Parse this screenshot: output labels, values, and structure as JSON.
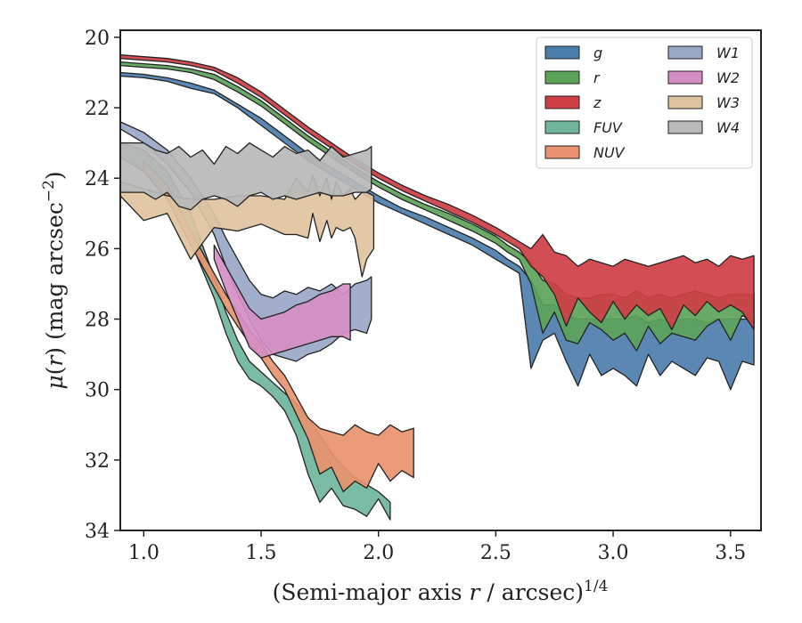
{
  "chart_data": {
    "type": "area",
    "title": "",
    "xlabel_parts": {
      "prefix": "(Semi-major axis ",
      "var": "r",
      "suffix": " / arcsec)",
      "sup": "1/4"
    },
    "ylabel_parts": {
      "mu": "μ",
      "open": "(",
      "var": "r",
      "close": ")",
      "units": " (mag arcsec",
      "sup": "−2",
      "end": ")"
    },
    "xlim": [
      0.9,
      3.63
    ],
    "ylim": [
      34,
      19.8
    ],
    "y_inverted": true,
    "xticks": [
      1.0,
      1.5,
      2.0,
      2.5,
      3.0,
      3.5
    ],
    "xtick_labels": [
      "1.0",
      "1.5",
      "2.0",
      "2.5",
      "3.0",
      "3.5"
    ],
    "yticks": [
      20,
      22,
      24,
      26,
      28,
      30,
      32,
      34
    ],
    "ytick_labels": [
      "20",
      "22",
      "24",
      "26",
      "28",
      "30",
      "32",
      "34"
    ],
    "grid": false,
    "legend": {
      "placement": "top-right",
      "columns": 2
    },
    "series": [
      {
        "name": "g",
        "color": "#4c7ead",
        "x": [
          0.9,
          1.0,
          1.1,
          1.2,
          1.3,
          1.4,
          1.5,
          1.6,
          1.7,
          1.8,
          1.9,
          2.0,
          2.1,
          2.2,
          2.3,
          2.4,
          2.5,
          2.55,
          2.6,
          2.65,
          2.7,
          2.75,
          2.8,
          2.85,
          2.9,
          2.95,
          3.0,
          3.05,
          3.1,
          3.15,
          3.2,
          3.25,
          3.3,
          3.35,
          3.4,
          3.45,
          3.5,
          3.55,
          3.6
        ],
        "low": [
          21.0,
          21.05,
          21.15,
          21.3,
          21.5,
          21.9,
          22.3,
          22.8,
          23.3,
          23.7,
          24.1,
          24.5,
          24.85,
          25.1,
          25.4,
          25.7,
          26.05,
          26.3,
          26.5,
          26.9,
          27.6,
          27.6,
          27.9,
          28.0,
          28.0,
          28.0,
          28.0,
          28.0,
          27.9,
          28.1,
          28.0,
          28.1,
          28.0,
          28.0,
          28.1,
          28.0,
          28.0,
          28.0,
          28.0
        ],
        "high": [
          21.1,
          21.15,
          21.25,
          21.45,
          21.6,
          22.0,
          22.5,
          23.0,
          23.5,
          23.9,
          24.3,
          24.7,
          25.0,
          25.3,
          25.6,
          25.9,
          26.3,
          26.5,
          26.7,
          29.4,
          28.6,
          28.4,
          29.2,
          29.9,
          29.0,
          29.6,
          29.4,
          29.6,
          29.9,
          29.0,
          29.6,
          29.2,
          29.4,
          29.6,
          29.1,
          29.2,
          30.0,
          29.2,
          29.3
        ]
      },
      {
        "name": "r",
        "color": "#5ca35a",
        "x": [
          0.9,
          1.0,
          1.1,
          1.2,
          1.3,
          1.4,
          1.5,
          1.6,
          1.7,
          1.8,
          1.9,
          2.0,
          2.1,
          2.2,
          2.3,
          2.4,
          2.5,
          2.55,
          2.6,
          2.65,
          2.7,
          2.75,
          2.8,
          2.85,
          2.9,
          2.95,
          3.0,
          3.05,
          3.1,
          3.15,
          3.2,
          3.25,
          3.3,
          3.35,
          3.4,
          3.45,
          3.5,
          3.55,
          3.6
        ],
        "low": [
          20.7,
          20.75,
          20.8,
          20.9,
          21.05,
          21.4,
          21.8,
          22.3,
          22.8,
          23.25,
          23.7,
          24.1,
          24.45,
          24.75,
          25.0,
          25.3,
          25.65,
          25.9,
          26.1,
          26.4,
          26.9,
          27.0,
          27.3,
          27.4,
          27.4,
          27.3,
          27.3,
          27.4,
          27.2,
          27.4,
          27.3,
          27.4,
          27.3,
          27.2,
          27.3,
          27.4,
          27.3,
          27.3,
          27.3
        ],
        "high": [
          20.8,
          20.85,
          20.9,
          21.0,
          21.2,
          21.55,
          21.95,
          22.45,
          22.95,
          23.4,
          23.85,
          24.25,
          24.6,
          24.9,
          25.2,
          25.5,
          25.85,
          26.1,
          26.3,
          27.0,
          28.4,
          27.8,
          28.6,
          28.7,
          28.1,
          28.3,
          28.6,
          28.4,
          28.9,
          28.2,
          28.7,
          28.4,
          28.5,
          28.6,
          28.2,
          28.0,
          28.6,
          27.9,
          28.1
        ]
      },
      {
        "name": "z",
        "color": "#cf3f45",
        "x": [
          0.9,
          1.0,
          1.1,
          1.2,
          1.3,
          1.4,
          1.5,
          1.6,
          1.7,
          1.8,
          1.9,
          2.0,
          2.1,
          2.2,
          2.3,
          2.4,
          2.5,
          2.55,
          2.6,
          2.65,
          2.7,
          2.75,
          2.8,
          2.85,
          2.9,
          2.95,
          3.0,
          3.05,
          3.1,
          3.15,
          3.2,
          3.25,
          3.3,
          3.35,
          3.4,
          3.45,
          3.5,
          3.55,
          3.6
        ],
        "low": [
          20.5,
          20.55,
          20.6,
          20.7,
          20.85,
          21.15,
          21.55,
          22.05,
          22.55,
          23.0,
          23.45,
          23.85,
          24.2,
          24.5,
          24.75,
          25.05,
          25.4,
          25.6,
          25.8,
          26.0,
          25.6,
          26.1,
          26.2,
          26.5,
          26.3,
          26.4,
          26.5,
          26.3,
          26.4,
          26.5,
          26.4,
          26.3,
          26.2,
          26.4,
          26.3,
          26.5,
          26.2,
          26.3,
          26.2
        ],
        "high": [
          20.6,
          20.65,
          20.7,
          20.8,
          20.95,
          21.3,
          21.7,
          22.2,
          22.7,
          23.15,
          23.6,
          24.0,
          24.35,
          24.65,
          24.95,
          25.25,
          25.6,
          25.8,
          26.0,
          26.5,
          26.8,
          27.3,
          28.2,
          27.4,
          27.8,
          28.1,
          27.5,
          28.0,
          27.6,
          27.9,
          27.7,
          28.3,
          27.6,
          27.9,
          27.5,
          27.8,
          27.6,
          27.8,
          28.3
        ]
      },
      {
        "name": "FUV",
        "color": "#6fb69b",
        "x": [
          0.9,
          1.0,
          1.1,
          1.2,
          1.3,
          1.35,
          1.4,
          1.45,
          1.5,
          1.55,
          1.6,
          1.65,
          1.7,
          1.75,
          1.8,
          1.85,
          1.9,
          1.95,
          2.0,
          2.05
        ],
        "low": [
          23.0,
          23.2,
          23.8,
          25.0,
          26.8,
          27.8,
          28.6,
          29.2,
          29.5,
          29.8,
          30.1,
          30.4,
          30.8,
          31.3,
          31.8,
          32.2,
          32.5,
          32.7,
          32.9,
          33.2
        ],
        "high": [
          23.4,
          23.8,
          24.6,
          25.8,
          27.4,
          28.4,
          29.2,
          29.7,
          29.9,
          30.2,
          30.6,
          31.3,
          32.4,
          33.2,
          32.8,
          33.3,
          33.4,
          33.6,
          33.1,
          33.7
        ]
      },
      {
        "name": "NUV",
        "color": "#e8926f",
        "x": [
          1.0,
          1.1,
          1.2,
          1.3,
          1.35,
          1.4,
          1.45,
          1.5,
          1.55,
          1.6,
          1.65,
          1.7,
          1.75,
          1.8,
          1.85,
          1.9,
          1.95,
          2.0,
          2.05,
          2.1,
          2.15
        ],
        "low": [
          23.5,
          24.2,
          25.5,
          26.7,
          27.3,
          27.8,
          28.3,
          28.7,
          29.2,
          29.6,
          30.2,
          30.8,
          31.1,
          31.2,
          31.3,
          31.0,
          31.2,
          31.3,
          31.0,
          31.2,
          31.1
        ],
        "high": [
          23.8,
          24.6,
          25.9,
          27.1,
          27.7,
          28.2,
          28.7,
          29.1,
          29.6,
          30.0,
          30.7,
          31.4,
          32.4,
          32.2,
          32.9,
          32.6,
          32.8,
          32.1,
          32.6,
          32.3,
          32.5
        ]
      },
      {
        "name": "W1",
        "color": "#9aa8c8",
        "x": [
          0.9,
          1.0,
          1.1,
          1.2,
          1.3,
          1.35,
          1.4,
          1.45,
          1.5,
          1.55,
          1.6,
          1.65,
          1.7,
          1.75,
          1.8,
          1.85,
          1.9,
          1.95,
          1.97
        ],
        "low": [
          22.4,
          22.7,
          23.2,
          24.0,
          25.0,
          25.7,
          26.3,
          26.9,
          27.3,
          27.4,
          27.2,
          27.3,
          27.1,
          27.2,
          27.0,
          27.3,
          27.0,
          26.9,
          26.8
        ],
        "high": [
          22.6,
          23.0,
          23.6,
          24.4,
          25.6,
          26.5,
          27.3,
          28.0,
          28.6,
          29.0,
          29.1,
          29.2,
          29.0,
          28.9,
          28.7,
          28.4,
          28.3,
          28.4,
          28.0
        ]
      },
      {
        "name": "W2",
        "color": "#d48ec4",
        "x": [
          1.3,
          1.35,
          1.4,
          1.45,
          1.5,
          1.55,
          1.6,
          1.65,
          1.7,
          1.75,
          1.8,
          1.85,
          1.88
        ],
        "low": [
          25.9,
          26.5,
          27.1,
          27.7,
          28.0,
          27.9,
          27.8,
          27.6,
          27.5,
          27.3,
          27.2,
          27.0,
          27.0
        ],
        "high": [
          26.3,
          27.2,
          28.0,
          28.8,
          29.1,
          29.0,
          28.9,
          28.8,
          28.7,
          28.6,
          28.5,
          28.5,
          28.6
        ]
      },
      {
        "name": "W3",
        "color": "#dfc39f",
        "x": [
          0.9,
          1.0,
          1.1,
          1.2,
          1.3,
          1.4,
          1.5,
          1.6,
          1.65,
          1.7,
          1.72,
          1.75,
          1.78,
          1.8,
          1.82,
          1.85,
          1.88,
          1.9,
          1.93,
          1.95,
          1.98
        ],
        "low": [
          24.1,
          24.3,
          24.5,
          24.6,
          24.6,
          24.5,
          24.5,
          24.6,
          24.0,
          24.4,
          23.9,
          24.5,
          24.0,
          24.6,
          24.1,
          24.5,
          24.3,
          24.6,
          24.4,
          24.4,
          24.5
        ],
        "high": [
          24.5,
          25.2,
          25.0,
          26.3,
          25.4,
          25.5,
          25.3,
          25.6,
          25.6,
          25.7,
          25.0,
          25.8,
          25.2,
          25.7,
          25.4,
          25.5,
          25.4,
          25.7,
          26.8,
          26.3,
          26.0
        ]
      },
      {
        "name": "W4",
        "color": "#b9b9b9",
        "x": [
          0.9,
          1.0,
          1.05,
          1.1,
          1.15,
          1.2,
          1.25,
          1.3,
          1.35,
          1.4,
          1.45,
          1.5,
          1.55,
          1.6,
          1.65,
          1.7,
          1.75,
          1.8,
          1.85,
          1.9,
          1.95,
          1.97
        ],
        "low": [
          23.0,
          23.0,
          23.2,
          23.3,
          23.1,
          23.4,
          23.2,
          23.6,
          23.1,
          23.3,
          23.0,
          23.2,
          23.4,
          23.1,
          23.3,
          23.2,
          23.5,
          23.1,
          23.4,
          23.3,
          23.2,
          23.1
        ],
        "high": [
          24.4,
          24.4,
          24.6,
          24.4,
          24.8,
          24.9,
          24.6,
          24.5,
          24.6,
          24.8,
          24.5,
          24.4,
          24.6,
          24.5,
          24.6,
          24.5,
          24.4,
          24.5,
          24.5,
          24.4,
          24.4,
          24.3
        ]
      }
    ]
  }
}
